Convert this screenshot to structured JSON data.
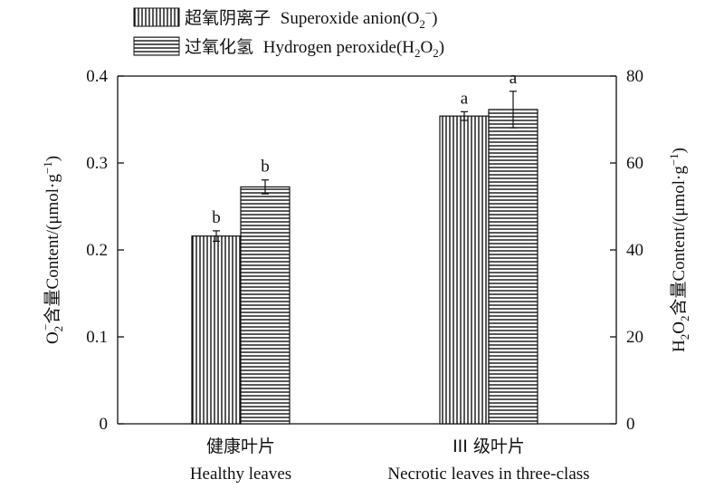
{
  "chart_data": {
    "type": "bar",
    "categories": [
      {
        "cn": "健康叶片",
        "en": "Healthy leaves"
      },
      {
        "cn": "III 级叶片",
        "en": "Necrotic leaves in three-class"
      }
    ],
    "series": [
      {
        "name": "超氧阴离子 Superoxide anion(O2−)",
        "legend_cn": "超氧阴离子",
        "legend_en": "Superoxide anion(O",
        "legend_sub": "2",
        "legend_sup": "−",
        "legend_tail": ")",
        "axis": "left",
        "pattern": "vertical-stripes",
        "values": [
          0.216,
          0.354
        ],
        "errors": [
          0.006,
          0.005
        ],
        "labels": [
          "b",
          "a"
        ]
      },
      {
        "name": "过氧化氢 Hydrogen peroxide(H2O2)",
        "legend_cn": "过氧化氢",
        "legend_en": "Hydrogen peroxide(H",
        "legend_sub1": "2",
        "legend_mid": "O",
        "legend_sub2": "2",
        "legend_tail": ")",
        "axis": "right",
        "pattern": "horizontal-stripes",
        "values": [
          54.5,
          72.3
        ],
        "errors": [
          1.6,
          4.2
        ],
        "labels": [
          "b",
          "a"
        ]
      }
    ],
    "left_axis": {
      "ylim": [
        0,
        0.4
      ],
      "ticks": [
        "0",
        "0.1",
        "0.2",
        "0.3",
        "0.4"
      ],
      "label_sub": "2",
      "label_pre": "O",
      "label_sup": "−",
      "label_cn": "含量",
      "label_en": "Content/(μmol·g",
      "label_exp": "−1",
      "label_tail": ")"
    },
    "right_axis": {
      "ylim": [
        0,
        80
      ],
      "ticks": [
        "0",
        "20",
        "40",
        "60",
        "80"
      ],
      "label_pre": "H",
      "label_sub1": "2",
      "label_mid": "O",
      "label_sub2": "2",
      "label_cn": "含量",
      "label_en": "Content/(μmol·g",
      "label_exp": "−1",
      "label_tail": ")"
    },
    "legend_position": "top-left",
    "grid": false
  }
}
